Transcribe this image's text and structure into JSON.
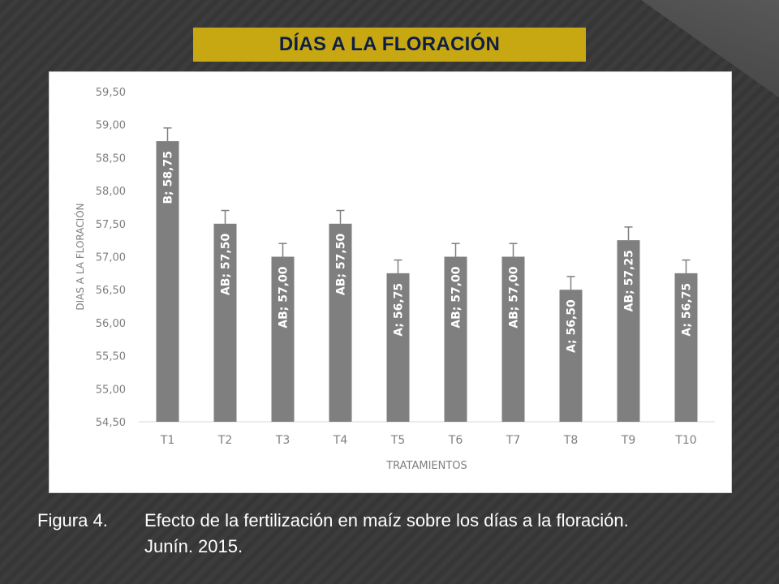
{
  "slide": {
    "title": "DÍAS A LA FLORACIÓN",
    "caption_label": "Figura 4.",
    "caption_line1": "Efecto de la fertilización en maíz sobre los días a la floración.",
    "caption_line2": "Junín. 2015."
  },
  "colors": {
    "background": "#3a3a3a",
    "title_bar": "#c8a812",
    "title_text": "#0e1f47",
    "bar": "#7f7f7f",
    "axis_text": "#7f7f7f"
  },
  "chart_data": {
    "type": "bar",
    "xlabel": "TRATAMIENTOS",
    "ylabel": "DIAS A LA FLORACIÓN",
    "ylim": [
      54.5,
      59.5
    ],
    "yticks": [
      "54,50",
      "55,00",
      "55,50",
      "56,00",
      "56,50",
      "57,00",
      "57,50",
      "58,00",
      "58,50",
      "59,00",
      "59,50"
    ],
    "categories": [
      "T1",
      "T2",
      "T3",
      "T4",
      "T5",
      "T6",
      "T7",
      "T8",
      "T9",
      "T10"
    ],
    "values": [
      58.75,
      57.5,
      57.0,
      57.5,
      56.75,
      57.0,
      57.0,
      56.5,
      57.25,
      56.75
    ],
    "error_plus": [
      0.2,
      0.2,
      0.2,
      0.2,
      0.2,
      0.2,
      0.2,
      0.2,
      0.2,
      0.2
    ],
    "data_labels": [
      "B; 58,75",
      "AB; 57,50",
      "AB; 57,00",
      "AB; 57,50",
      "A; 56,75",
      "AB; 57,00",
      "AB; 57,00",
      "A; 56,50",
      "AB; 57,25",
      "A; 56,75"
    ],
    "grid": false,
    "legend": "none"
  }
}
